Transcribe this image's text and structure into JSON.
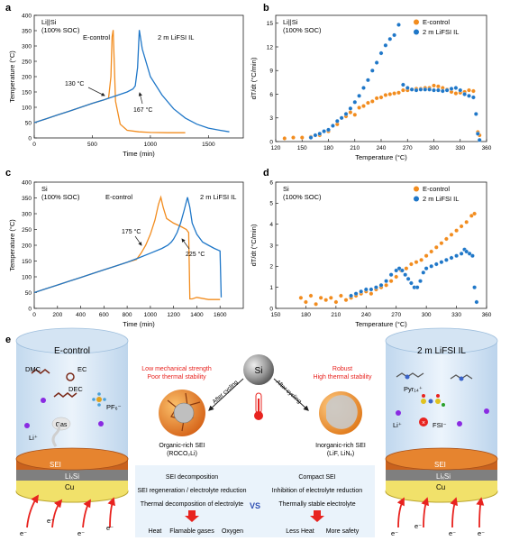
{
  "chart_data": [
    {
      "panel": "a",
      "type": "line",
      "annotation_tl": [
        "Li||Si",
        "(100% SOC)"
      ],
      "xlabel": "Time (min)",
      "ylabel": "Temperature (°C)",
      "xlim": [
        0,
        1800
      ],
      "ylim": [
        0,
        400
      ],
      "xticks": [
        "0",
        "500",
        "1000",
        "1500"
      ],
      "yticks": [
        "0",
        "50",
        "100",
        "150",
        "200",
        "250",
        "300",
        "350",
        "400"
      ],
      "series": [
        {
          "name": "E-control",
          "color": "#F28C1E",
          "x": [
            0,
            100,
            200,
            300,
            400,
            500,
            600,
            640,
            660,
            670,
            680,
            700,
            740,
            800,
            900,
            1000,
            1150,
            1300
          ],
          "y": [
            50,
            62,
            75,
            87,
            100,
            113,
            124,
            130,
            200,
            330,
            352,
            120,
            45,
            25,
            20,
            18,
            17,
            17
          ]
        },
        {
          "name": "2 m LiFSI IL",
          "color": "#1F77C8",
          "x": [
            0,
            100,
            200,
            300,
            400,
            500,
            600,
            700,
            800,
            850,
            870,
            890,
            905,
            930,
            1000,
            1100,
            1200,
            1300,
            1400,
            1500,
            1600,
            1680
          ],
          "y": [
            50,
            62,
            75,
            87,
            100,
            113,
            124,
            137,
            150,
            160,
            170,
            230,
            352,
            290,
            200,
            140,
            95,
            65,
            45,
            32,
            25,
            20
          ]
        }
      ],
      "labels": [
        {
          "text": "E-control"
        },
        {
          "text": "2 m LiFSI IL"
        },
        {
          "text": "130 °C"
        },
        {
          "text": "167 °C"
        }
      ]
    },
    {
      "panel": "b",
      "type": "scatter",
      "annotation_tl": [
        "Li||Si",
        "(100% SOC)"
      ],
      "xlabel": "Temperature (°C)",
      "ylabel": "dT/dt (°C/min)",
      "xlim": [
        120,
        360
      ],
      "ylim": [
        0,
        16
      ],
      "xticks": [
        "120",
        "150",
        "180",
        "210",
        "240",
        "270",
        "300",
        "330",
        "360"
      ],
      "yticks": [
        "0",
        "3",
        "6",
        "9",
        "12",
        "15"
      ],
      "legend": "top-right",
      "series": [
        {
          "name": "E-control",
          "color": "#F28C1E",
          "x": [
            130,
            140,
            150,
            160,
            170,
            180,
            190,
            200,
            205,
            210,
            215,
            220,
            225,
            230,
            235,
            240,
            245,
            250,
            255,
            260,
            265,
            270,
            275,
            280,
            285,
            290,
            295,
            300,
            305,
            310,
            315,
            320,
            325,
            330,
            335,
            340,
            345,
            350,
            352
          ],
          "y": [
            0.4,
            0.5,
            0.5,
            0.6,
            0.8,
            1.3,
            2.2,
            3.2,
            3.7,
            3.4,
            4.3,
            4.5,
            4.9,
            5.1,
            5.5,
            5.6,
            5.9,
            6.0,
            6.1,
            6.2,
            6.5,
            6.5,
            6.6,
            6.7,
            6.7,
            6.8,
            6.8,
            7.1,
            7.0,
            6.8,
            6.6,
            6.3,
            6.1,
            6.2,
            6.3,
            6.5,
            6.4,
            1.2,
            0.8
          ]
        },
        {
          "name": "2 m LiFSI IL",
          "color": "#1F77C8",
          "x": [
            160,
            165,
            170,
            175,
            180,
            185,
            190,
            195,
            200,
            205,
            210,
            215,
            220,
            225,
            230,
            235,
            240,
            245,
            250,
            255,
            260,
            265,
            270,
            275,
            280,
            285,
            290,
            295,
            300,
            305,
            310,
            315,
            320,
            325,
            330,
            335,
            340,
            345,
            348,
            350,
            352
          ],
          "y": [
            0.5,
            0.8,
            1.0,
            1.3,
            1.5,
            2.0,
            2.6,
            3.0,
            3.5,
            4.2,
            5.0,
            5.8,
            6.8,
            7.8,
            9.0,
            10.0,
            11.2,
            12.2,
            13.0,
            13.5,
            14.8,
            7.2,
            6.8,
            6.6,
            6.5,
            6.6,
            6.6,
            6.6,
            6.5,
            6.5,
            6.4,
            6.5,
            6.7,
            6.8,
            6.5,
            6.0,
            5.8,
            5.6,
            3.5,
            1.0,
            0.2
          ]
        }
      ]
    },
    {
      "panel": "c",
      "type": "line",
      "annotation_tl": [
        "Si",
        "(100% SOC)"
      ],
      "xlabel": "Time (min)",
      "ylabel": "Temperature (°C)",
      "xlim": [
        0,
        1800
      ],
      "ylim": [
        0,
        400
      ],
      "xticks": [
        "0",
        "200",
        "400",
        "600",
        "800",
        "1000",
        "1200",
        "1400",
        "1600"
      ],
      "yticks": [
        "0",
        "50",
        "100",
        "150",
        "200",
        "250",
        "300",
        "350",
        "400"
      ],
      "series": [
        {
          "name": "E-control",
          "color": "#F28C1E",
          "x": [
            0,
            100,
            200,
            300,
            400,
            500,
            600,
            700,
            800,
            880,
            920,
            960,
            1000,
            1040,
            1070,
            1090,
            1110,
            1140,
            1200,
            1260,
            1310,
            1330,
            1340,
            1360,
            1400,
            1500,
            1600
          ],
          "y": [
            50,
            62,
            74,
            86,
            98,
            110,
            122,
            134,
            146,
            155,
            175,
            200,
            235,
            280,
            330,
            352,
            320,
            285,
            270,
            260,
            250,
            240,
            30,
            30,
            35,
            28,
            28
          ]
        },
        {
          "name": "2 m LiFSI IL",
          "color": "#1F77C8",
          "x": [
            0,
            100,
            200,
            300,
            400,
            500,
            600,
            700,
            800,
            900,
            1000,
            1100,
            1150,
            1180,
            1200,
            1230,
            1260,
            1290,
            1320,
            1340,
            1360,
            1400,
            1450,
            1500,
            1550,
            1600,
            1610
          ],
          "y": [
            50,
            62,
            74,
            86,
            98,
            110,
            122,
            134,
            146,
            160,
            175,
            190,
            200,
            210,
            220,
            240,
            270,
            310,
            352,
            320,
            270,
            235,
            210,
            200,
            190,
            182,
            35
          ]
        }
      ],
      "labels": [
        {
          "text": "E-control"
        },
        {
          "text": "2 m LiFSI IL"
        },
        {
          "text": "175 °C"
        },
        {
          "text": "225 °C"
        }
      ]
    },
    {
      "panel": "d",
      "type": "scatter",
      "annotation_tl": [
        "Si",
        "(100% SOC)"
      ],
      "xlabel": "Temperature (°C)",
      "ylabel": "dT/dt (°C/min)",
      "xlim": [
        150,
        360
      ],
      "ylim": [
        0,
        6
      ],
      "xticks": [
        "150",
        "180",
        "210",
        "240",
        "270",
        "300",
        "330",
        "360"
      ],
      "yticks": [
        "0",
        "1",
        "2",
        "3",
        "4",
        "5",
        "6"
      ],
      "legend": "top-right",
      "series": [
        {
          "name": "E-control",
          "color": "#F28C1E",
          "x": [
            175,
            180,
            185,
            190,
            195,
            200,
            205,
            210,
            215,
            220,
            225,
            230,
            235,
            240,
            245,
            250,
            255,
            260,
            265,
            270,
            275,
            280,
            285,
            290,
            295,
            300,
            305,
            310,
            315,
            320,
            325,
            330,
            335,
            340,
            345,
            348
          ],
          "y": [
            0.5,
            0.3,
            0.6,
            0.2,
            0.5,
            0.4,
            0.5,
            0.3,
            0.6,
            0.4,
            0.5,
            0.6,
            0.7,
            0.8,
            0.7,
            0.9,
            1.0,
            1.1,
            1.3,
            1.5,
            1.8,
            1.9,
            2.1,
            2.2,
            2.3,
            2.5,
            2.7,
            2.9,
            3.1,
            3.3,
            3.5,
            3.7,
            3.9,
            4.1,
            4.4,
            4.5
          ]
        },
        {
          "name": "2 m LiFSI IL",
          "color": "#1F77C8",
          "x": [
            225,
            230,
            235,
            240,
            245,
            250,
            255,
            260,
            265,
            270,
            273,
            276,
            279,
            282,
            285,
            288,
            291,
            294,
            297,
            300,
            305,
            310,
            315,
            320,
            325,
            330,
            335,
            338,
            340,
            343,
            346,
            348,
            350
          ],
          "y": [
            0.6,
            0.7,
            0.8,
            0.9,
            0.9,
            1.0,
            1.1,
            1.3,
            1.6,
            1.8,
            1.9,
            1.8,
            1.6,
            1.4,
            1.2,
            1.0,
            1.0,
            1.3,
            1.7,
            1.9,
            2.0,
            2.1,
            2.2,
            2.3,
            2.4,
            2.5,
            2.6,
            2.8,
            2.7,
            2.6,
            2.5,
            1.0,
            0.3
          ]
        }
      ]
    }
  ],
  "panel_labels": {
    "a": "a",
    "b": "b",
    "c": "c",
    "d": "d",
    "e": "e"
  },
  "schematic": {
    "left_title": "E-control",
    "right_title": "2 m LiFSI IL",
    "center_sphere_label": "Si",
    "left_arrow_label": "After cycling",
    "right_arrow_label": "After cycling",
    "left_warning": [
      "Low mechanical strength",
      "Poor thermal stability"
    ],
    "right_strength": [
      "Robust",
      "High thermal stability"
    ],
    "left_sei_name": [
      "Organic-rich SEI",
      "(ROCO₂Li)"
    ],
    "right_sei_name": [
      "Inorganic-rich SEI",
      "(LiF, LiNₓ)"
    ],
    "left_molecules": {
      "dmc": "DMC",
      "ec": "EC",
      "dec": "DEC",
      "pf6": "PF₆⁻",
      "gas": "Gas",
      "li": "Li⁺"
    },
    "right_molecules": {
      "pyr": "Pyr₁₄⁺",
      "fsi": "FSI⁻",
      "li": "Li⁺"
    },
    "layers": {
      "sei": "SEI",
      "lixsi": "LiₓSi",
      "cu": "Cu"
    },
    "electron": "e⁻",
    "left_list": [
      "SEI decomposition",
      "SEI regeneration / electrolyte reduction",
      "Thermal  decomposition of electrolyte"
    ],
    "left_outcome": [
      "Heat",
      "Flamable gases",
      "Oxygen"
    ],
    "right_list": [
      "Compact SEI",
      "Inhibition of electrolyte reduction",
      "Thermally stable electrolyte"
    ],
    "right_outcome": [
      "Less Heat",
      "More safety"
    ],
    "vs": "VS",
    "colors": {
      "orange": "#F28C1E",
      "blue": "#1F77C8",
      "red": "#E8231F",
      "copper": "#C9621E"
    }
  }
}
